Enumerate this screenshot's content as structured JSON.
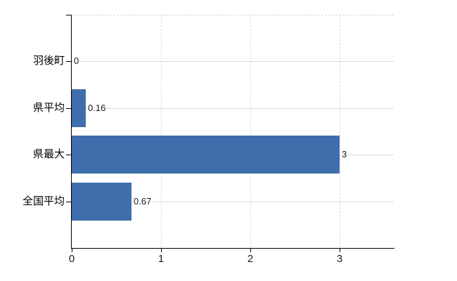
{
  "chart_data": {
    "type": "bar",
    "orientation": "horizontal",
    "title": "",
    "xlabel": "",
    "ylabel": "",
    "categories": [
      "羽後町",
      "県平均",
      "県最大",
      "全国平均"
    ],
    "values": [
      0,
      0.16,
      3,
      0.67
    ],
    "value_labels": [
      "0",
      "0.16",
      "3",
      "0.67"
    ],
    "x_ticks": [
      0,
      1,
      2,
      3
    ],
    "x_tick_labels": [
      "0",
      "1",
      "2",
      "3"
    ],
    "xlim": [
      0,
      3.6
    ],
    "grid": true,
    "legend": false,
    "colors": {
      "bar": "#3e6fac",
      "axis": "#000000",
      "horizontal_grid": "#d5ddd5",
      "vertical_grid": "#e2d6da",
      "top_border": "#d9d9d9",
      "tick_text": "#1a1a1a",
      "category_text": "#000000"
    }
  }
}
